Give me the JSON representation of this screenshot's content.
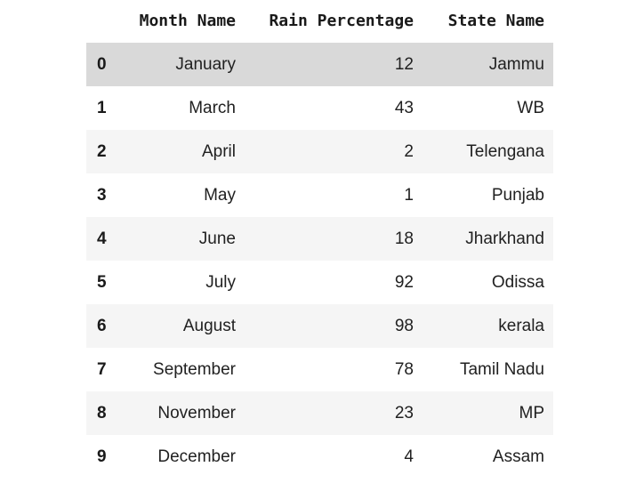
{
  "colors": {
    "header_text": "#1a1a1a",
    "body_text": "#212121",
    "index_text": "#1a1a1a",
    "row_highlight": "#d9d9d9",
    "row_stripe": "#f5f5f5",
    "row_plain": "#ffffff"
  },
  "chart_data": {
    "type": "table",
    "columns": [
      "Month Name",
      "Rain Percentage",
      "State Name"
    ],
    "index_header": "",
    "rows": [
      {
        "index": "0",
        "month": "January",
        "rain": "12",
        "state": "Jammu",
        "highlighted": true
      },
      {
        "index": "1",
        "month": "March",
        "rain": "43",
        "state": "WB",
        "highlighted": false
      },
      {
        "index": "2",
        "month": "April",
        "rain": "2",
        "state": "Telengana",
        "highlighted": false
      },
      {
        "index": "3",
        "month": "May",
        "rain": "1",
        "state": "Punjab",
        "highlighted": false
      },
      {
        "index": "4",
        "month": "June",
        "rain": "18",
        "state": "Jharkhand",
        "highlighted": false
      },
      {
        "index": "5",
        "month": "July",
        "rain": "92",
        "state": "Odissa",
        "highlighted": false
      },
      {
        "index": "6",
        "month": "August",
        "rain": "98",
        "state": "kerala",
        "highlighted": false
      },
      {
        "index": "7",
        "month": "September",
        "rain": "78",
        "state": "Tamil Nadu",
        "highlighted": false
      },
      {
        "index": "8",
        "month": "November",
        "rain": "23",
        "state": "MP",
        "highlighted": false
      },
      {
        "index": "9",
        "month": "December",
        "rain": "4",
        "state": "Assam",
        "highlighted": false
      }
    ]
  }
}
